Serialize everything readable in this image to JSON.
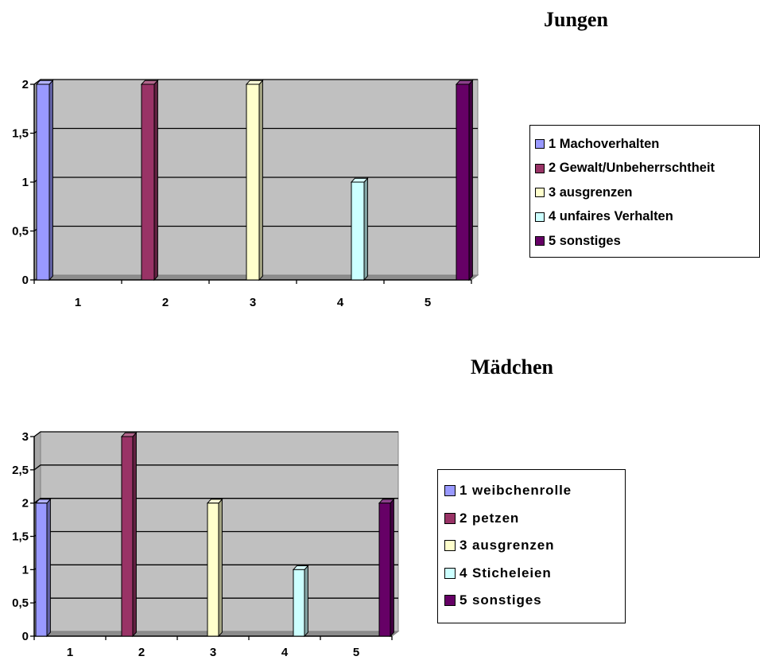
{
  "chart_data": [
    {
      "type": "bar",
      "title": "Jungen",
      "categories": [
        "1",
        "2",
        "3",
        "4",
        "5"
      ],
      "series": [
        {
          "name": "1 Machoverhalten",
          "color": "#9999ff",
          "values": [
            2,
            null,
            null,
            null,
            null
          ]
        },
        {
          "name": "2 Gewalt/Unbeherrschtheit",
          "color": "#993366",
          "values": [
            null,
            2,
            null,
            null,
            null
          ]
        },
        {
          "name": "3 ausgrenzen",
          "color": "#ffffcc",
          "values": [
            null,
            null,
            2,
            null,
            null
          ]
        },
        {
          "name": "4 unfaires Verhalten",
          "color": "#ccffff",
          "values": [
            null,
            null,
            null,
            1,
            null
          ]
        },
        {
          "name": "5 sonstiges",
          "color": "#660066",
          "values": [
            null,
            null,
            null,
            null,
            2
          ]
        }
      ],
      "yticks": [
        "0",
        "0,5",
        "1",
        "1,5",
        "2"
      ],
      "ylim": [
        0,
        2
      ],
      "grid": true,
      "legend_position": "right",
      "plot_background": "#c0c0c0"
    },
    {
      "type": "bar",
      "title": "Mädchen",
      "categories": [
        "1",
        "2",
        "3",
        "4",
        "5"
      ],
      "series": [
        {
          "name": "1 weibchenrolle",
          "color": "#9999ff",
          "values": [
            2,
            null,
            null,
            null,
            null
          ]
        },
        {
          "name": "2 petzen",
          "color": "#993366",
          "values": [
            null,
            3,
            null,
            null,
            null
          ]
        },
        {
          "name": "3 ausgrenzen",
          "color": "#ffffcc",
          "values": [
            null,
            null,
            2,
            null,
            null
          ]
        },
        {
          "name": "4 Sticheleien",
          "color": "#ccffff",
          "values": [
            null,
            null,
            null,
            1,
            null
          ]
        },
        {
          "name": "5 sonstiges",
          "color": "#660066",
          "values": [
            null,
            null,
            null,
            null,
            2
          ]
        }
      ],
      "yticks": [
        "0",
        "0,5",
        "1",
        "1,5",
        "2",
        "2,5",
        "3"
      ],
      "ylim": [
        0,
        3
      ],
      "grid": true,
      "legend_position": "right",
      "plot_background": "#c0c0c0"
    }
  ]
}
